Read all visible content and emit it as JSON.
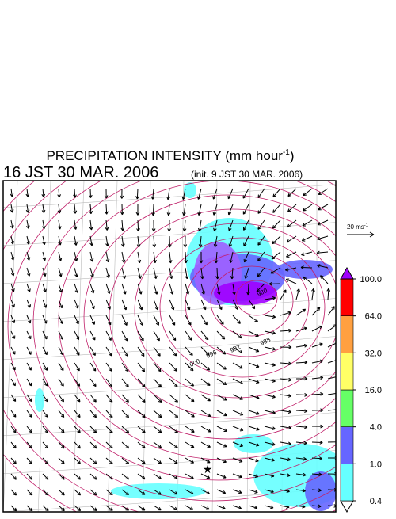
{
  "header": {
    "title": {
      "text": "PRECIPITATION INTENSITY (mm hour",
      "unit_exponent": "-1",
      "close": ")"
    },
    "valid_time": "16 JST 30 MAR. 2006",
    "init_time": "(init. 9 JST 30 MAR. 2006)"
  },
  "reference_vector": {
    "text": "20 ms",
    "unit_exponent": "-1"
  },
  "isobar_labels": [
    "988",
    "992",
    "996",
    "1000",
    "980"
  ],
  "colorbar": {
    "levels": [
      {
        "value": 0.4,
        "label": "0.4"
      },
      {
        "value": 1,
        "label": "1.0"
      },
      {
        "value": 4,
        "label": "4.0"
      },
      {
        "value": 16,
        "label": "16.0"
      },
      {
        "value": 32,
        "label": "32.0"
      },
      {
        "value": 64,
        "label": "64.0"
      },
      {
        "value": 100,
        "label": "100.0"
      }
    ],
    "colors": [
      "#ffffff",
      "#66ffff",
      "#6666ff",
      "#66ff66",
      "#ffff66",
      "#ffa040",
      "#ff0000",
      "#a000ff"
    ]
  }
}
